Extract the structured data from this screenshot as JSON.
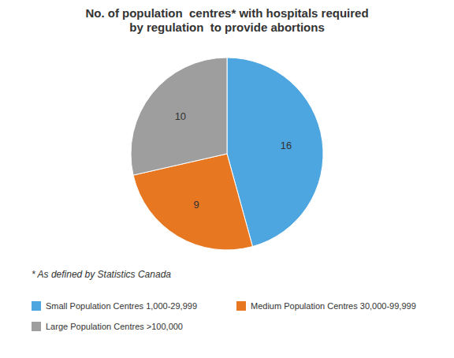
{
  "chart_data": {
    "type": "pie",
    "title": "No. of population  centres* with hospitals required\nby regulation  to provide abortions",
    "categories": [
      "Small Population Centres 1,000-29,999",
      "Medium Population Centres 30,000-99,999",
      "Large Population Centres >100,000"
    ],
    "values": [
      16,
      9,
      10
    ],
    "colors": [
      "#4DA6E0",
      "#E87722",
      "#9E9E9E"
    ],
    "data_labels": true,
    "annotations": [
      "* As defined by Statistics Canada"
    ],
    "legend": "bottom"
  }
}
